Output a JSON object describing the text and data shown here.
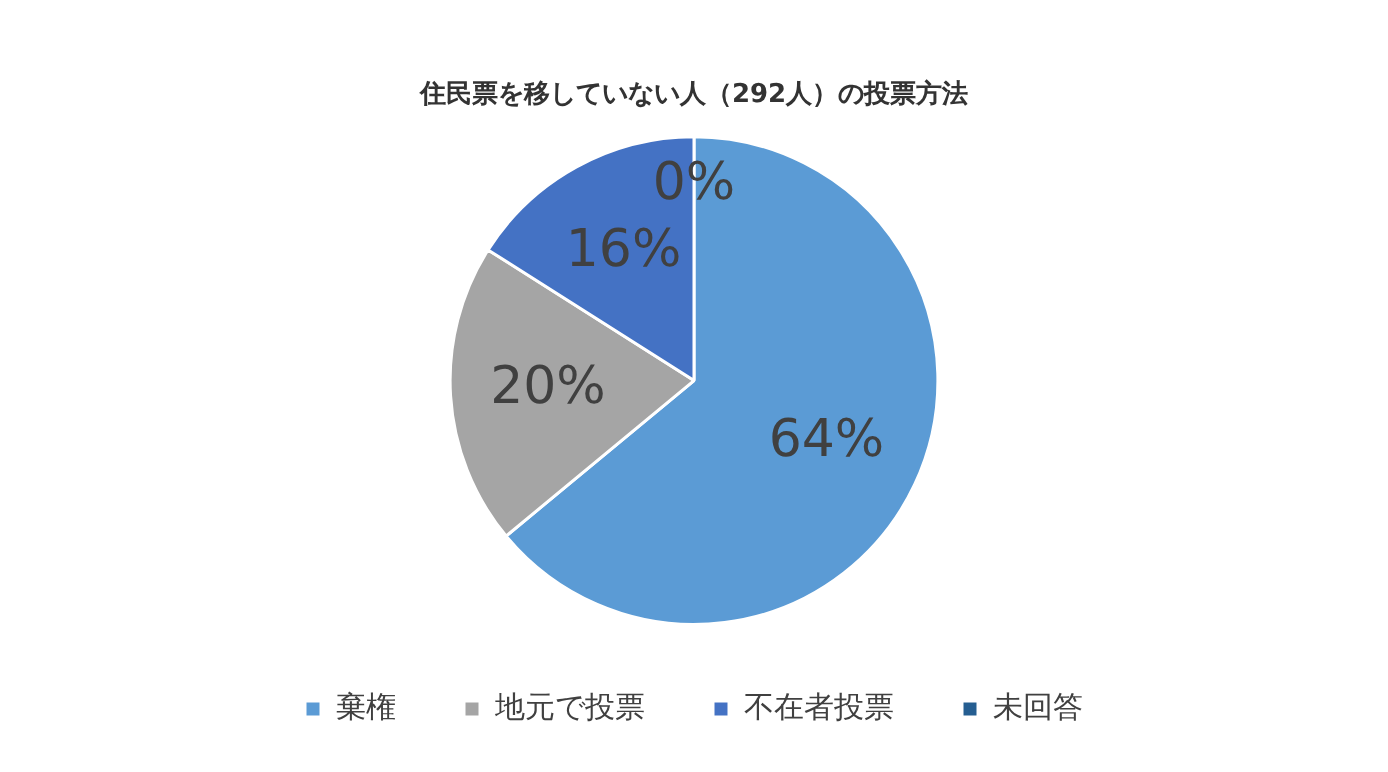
{
  "chart_data": {
    "type": "pie",
    "title": "住民票を移していない人（292人）の投票方法",
    "categories": [
      "棄権",
      "地元で投票",
      "不在者投票",
      "未回答"
    ],
    "values": [
      64,
      20,
      16,
      0
    ],
    "colors": [
      "#5b9bd5",
      "#a5a5a5",
      "#4472c4",
      "#255e91"
    ],
    "value_labels": [
      "64%",
      "20%",
      "16%",
      "0%"
    ],
    "legend": "bottom"
  }
}
